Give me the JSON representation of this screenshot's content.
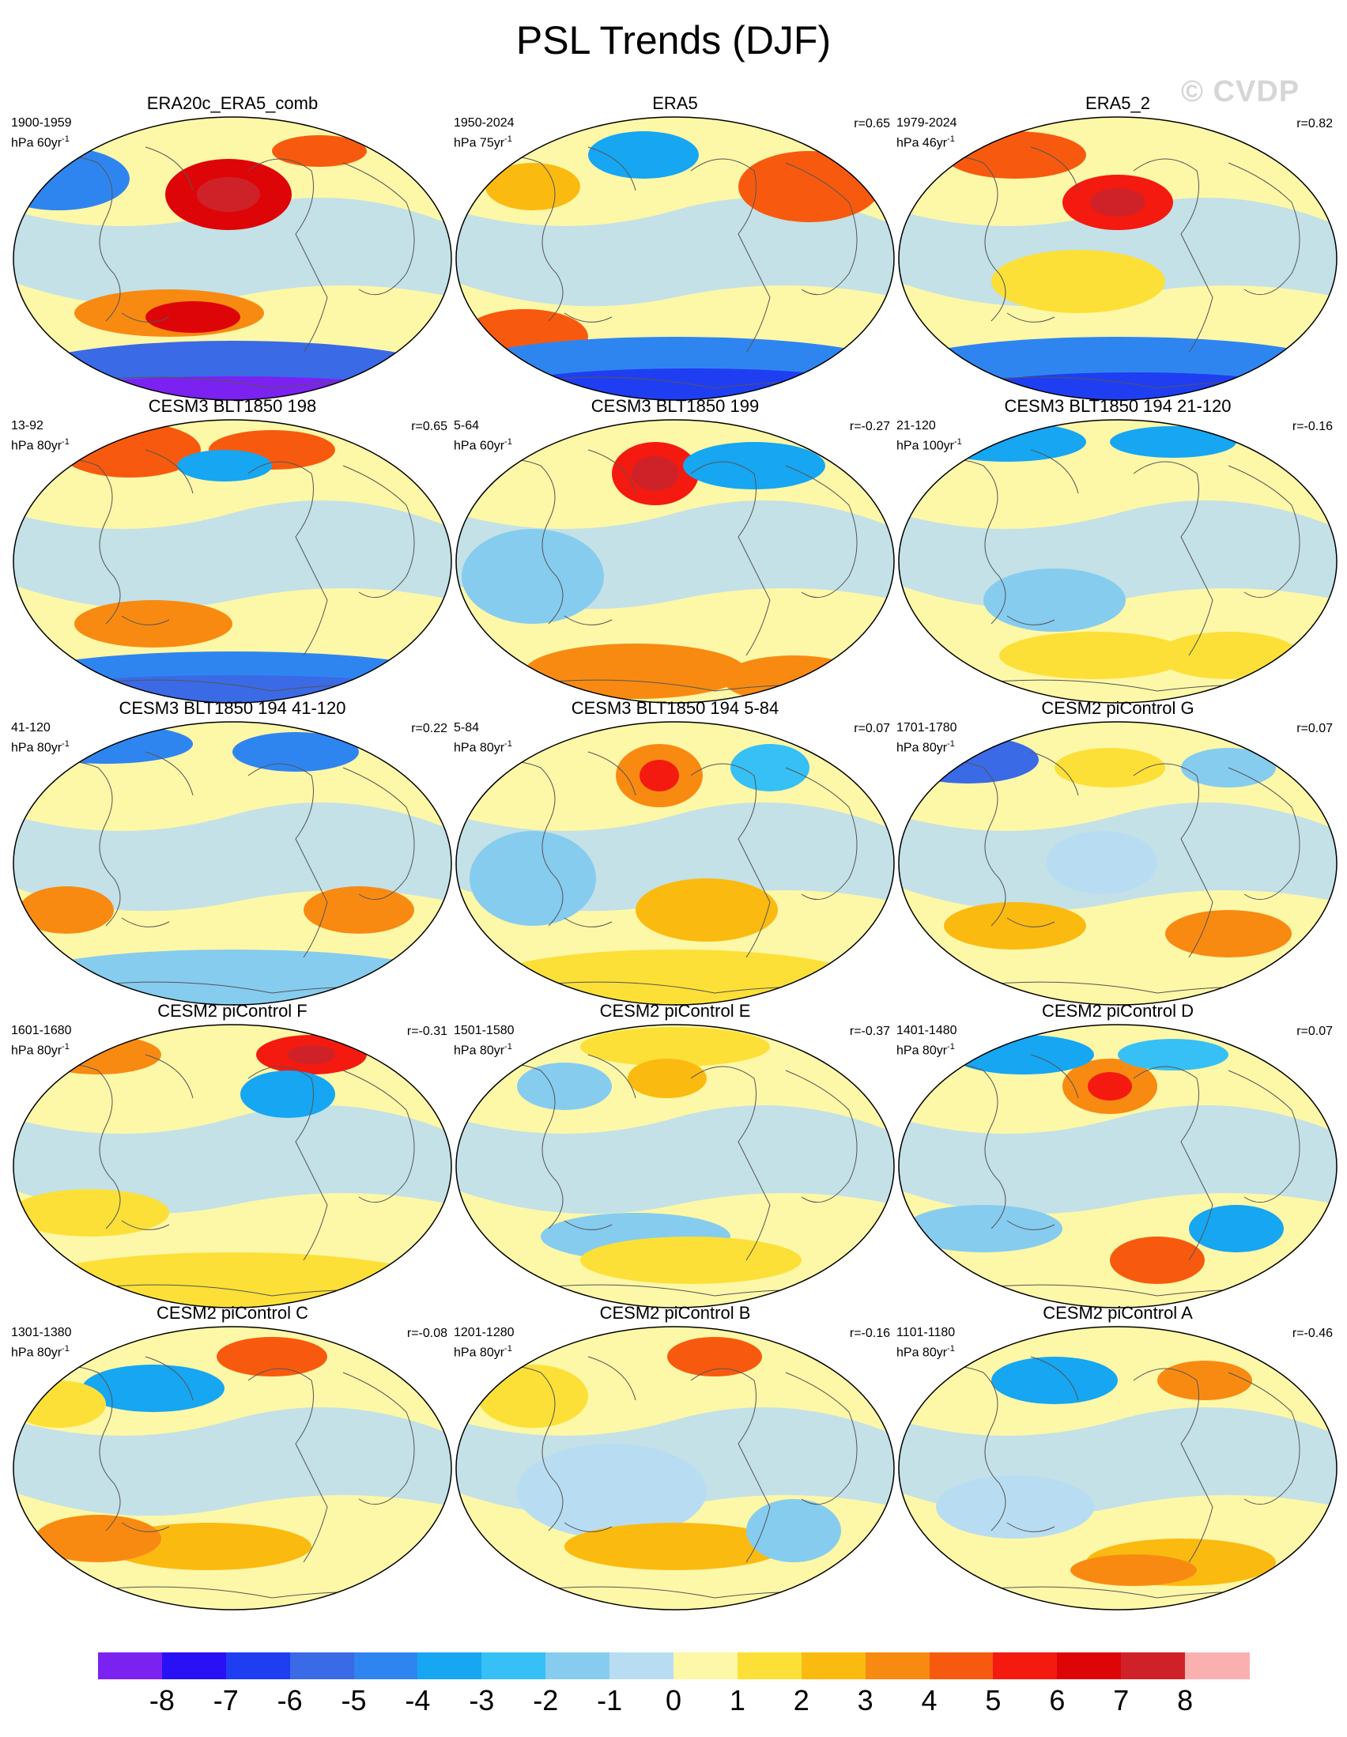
{
  "title": "PSL Trends (DJF)",
  "watermark": "© CVDP",
  "panels": [
    {
      "title": "ERA20c_ERA5_comb",
      "period": "1900-1959",
      "unit_prefix": "hPa 60yr",
      "unit_exp": "-1",
      "corr": ""
    },
    {
      "title": "ERA5",
      "period": "1950-2024",
      "unit_prefix": "hPa 75yr",
      "unit_exp": "-1",
      "corr": "r=0.65"
    },
    {
      "title": "ERA5_2",
      "period": "1979-2024",
      "unit_prefix": "hPa 46yr",
      "unit_exp": "-1",
      "corr": "r=0.82"
    },
    {
      "title": "CESM3 BLT1850 198",
      "period": "13-92",
      "unit_prefix": "hPa 80yr",
      "unit_exp": "-1",
      "corr": "r=0.65"
    },
    {
      "title": "CESM3 BLT1850 199",
      "period": "5-64",
      "unit_prefix": "hPa 60yr",
      "unit_exp": "-1",
      "corr": "r=-0.27"
    },
    {
      "title": "CESM3 BLT1850 194 21-120",
      "period": "21-120",
      "unit_prefix": "hPa 100yr",
      "unit_exp": "-1",
      "corr": "r=-0.16"
    },
    {
      "title": "CESM3 BLT1850 194 41-120",
      "period": "41-120",
      "unit_prefix": "hPa 80yr",
      "unit_exp": "-1",
      "corr": "r=0.22"
    },
    {
      "title": "CESM3 BLT1850 194 5-84",
      "period": "5-84",
      "unit_prefix": "hPa 80yr",
      "unit_exp": "-1",
      "corr": "r=0.07"
    },
    {
      "title": "CESM2 piControl G",
      "period": "1701-1780",
      "unit_prefix": "hPa 80yr",
      "unit_exp": "-1",
      "corr": "r=0.07"
    },
    {
      "title": "CESM2 piControl F",
      "period": "1601-1680",
      "unit_prefix": "hPa 80yr",
      "unit_exp": "-1",
      "corr": "r=-0.31"
    },
    {
      "title": "CESM2 piControl E",
      "period": "1501-1580",
      "unit_prefix": "hPa 80yr",
      "unit_exp": "-1",
      "corr": "r=-0.37"
    },
    {
      "title": "CESM2 piControl D",
      "period": "1401-1480",
      "unit_prefix": "hPa 80yr",
      "unit_exp": "-1",
      "corr": "r=0.07"
    },
    {
      "title": "CESM2 piControl C",
      "period": "1301-1380",
      "unit_prefix": "hPa 80yr",
      "unit_exp": "-1",
      "corr": "r=-0.08"
    },
    {
      "title": "CESM2 piControl B",
      "period": "1201-1280",
      "unit_prefix": "hPa 80yr",
      "unit_exp": "-1",
      "corr": "r=-0.16"
    },
    {
      "title": "CESM2 piControl A",
      "period": "1101-1180",
      "unit_prefix": "hPa 80yr",
      "unit_exp": "-1",
      "corr": "r=-0.46"
    }
  ],
  "colorbar": {
    "colors": [
      "#7b22f0",
      "#2a10f5",
      "#1f3ef2",
      "#3a6ae6",
      "#2f85f0",
      "#16a6f2",
      "#36c0f5",
      "#86ccef",
      "#b8ddf2",
      "#fdf7a8",
      "#fce038",
      "#fbba10",
      "#f88a12",
      "#f75a0e",
      "#f41a10",
      "#de0508",
      "#cf2228",
      "#fbb0b0"
    ],
    "labels": [
      "-8",
      "-7",
      "-6",
      "-5",
      "-4",
      "-3",
      "-2",
      "-1",
      "0",
      "1",
      "2",
      "3",
      "4",
      "5",
      "6",
      "7",
      "8"
    ]
  }
}
